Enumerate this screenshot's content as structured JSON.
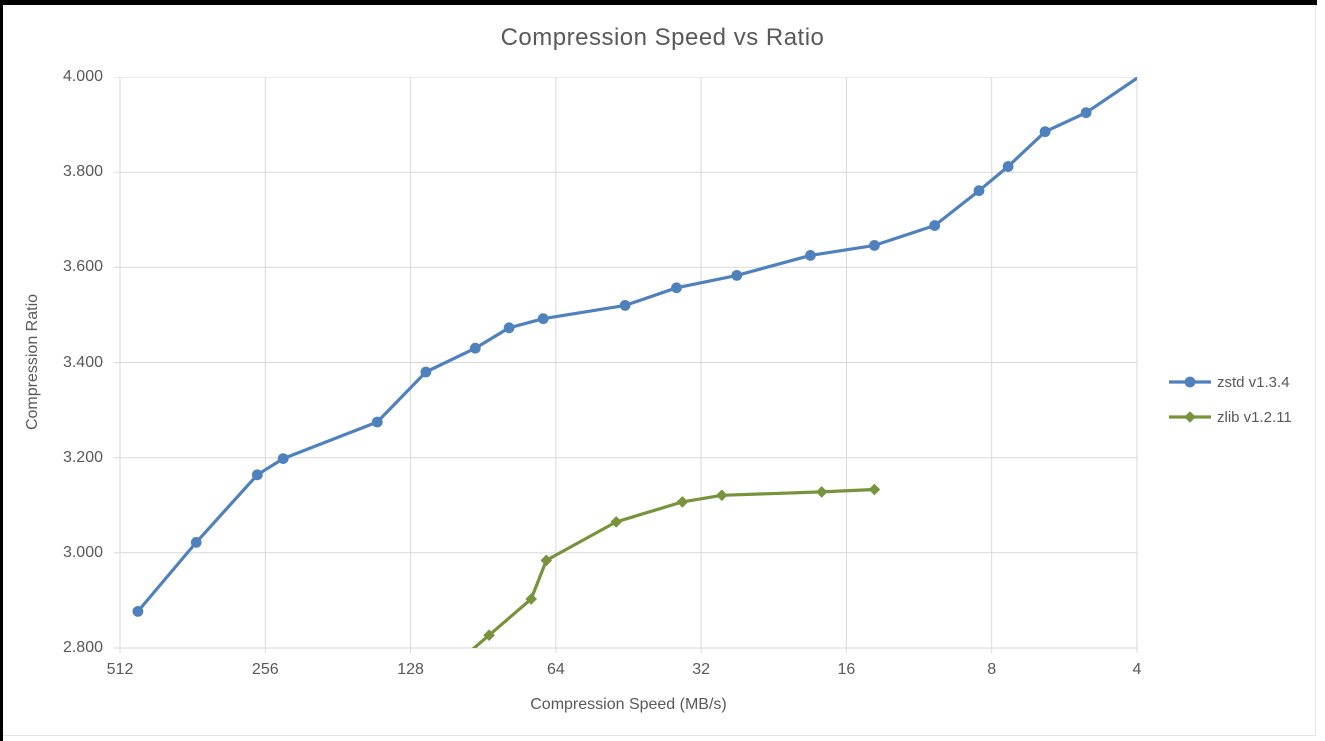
{
  "title": "Compression Speed vs Ratio",
  "chart_data": {
    "type": "line",
    "title": "Compression Speed vs Ratio",
    "xlabel": "Compression Speed (MB/s)",
    "ylabel": "Compression Ratio",
    "x_scale": "log2-reversed",
    "xlim": [
      512,
      4
    ],
    "ylim": [
      2.8,
      4.0
    ],
    "grid": true,
    "legend_position": "right",
    "x_ticks": [
      512,
      256,
      128,
      64,
      32,
      16,
      8,
      4
    ],
    "x_tick_labels": [
      "512",
      "256",
      "128",
      "64",
      "32",
      "16",
      "8",
      "4"
    ],
    "y_ticks": [
      4.0,
      3.8,
      3.6,
      3.4,
      3.2,
      3.0,
      2.8
    ],
    "y_tick_labels": [
      "4.000",
      "3.800",
      "3.600",
      "3.400",
      "3.200",
      "3.000",
      "2.800"
    ],
    "colors": {
      "grid": "#d9d9d9",
      "text": "#595959",
      "frame": "#000000"
    },
    "series": [
      {
        "name": "zstd v1.3.4",
        "color": "#4f81bd",
        "marker": "circle",
        "points": [
          [
            470,
            2.877
          ],
          [
            356,
            3.022
          ],
          [
            266,
            3.164
          ],
          [
            235,
            3.198
          ],
          [
            150,
            3.275
          ],
          [
            119,
            3.38
          ],
          [
            94,
            3.43
          ],
          [
            80,
            3.473
          ],
          [
            68,
            3.492
          ],
          [
            46,
            3.52
          ],
          [
            36,
            3.557
          ],
          [
            27,
            3.583
          ],
          [
            19,
            3.625
          ],
          [
            14,
            3.646
          ],
          [
            10.5,
            3.688
          ],
          [
            8.5,
            3.761
          ],
          [
            7.4,
            3.812
          ],
          [
            6.2,
            3.885
          ],
          [
            5.1,
            3.925
          ],
          [
            3.9,
            4.005
          ]
        ]
      },
      {
        "name": "zlib v1.2.11",
        "color": "#77933c",
        "marker": "diamond",
        "points": [
          [
            110,
            2.743
          ],
          [
            88,
            2.827
          ],
          [
            72,
            2.903
          ],
          [
            67,
            2.984
          ],
          [
            48,
            3.065
          ],
          [
            35,
            3.107
          ],
          [
            29,
            3.121
          ],
          [
            18,
            3.128
          ],
          [
            14,
            3.133
          ]
        ]
      }
    ]
  }
}
